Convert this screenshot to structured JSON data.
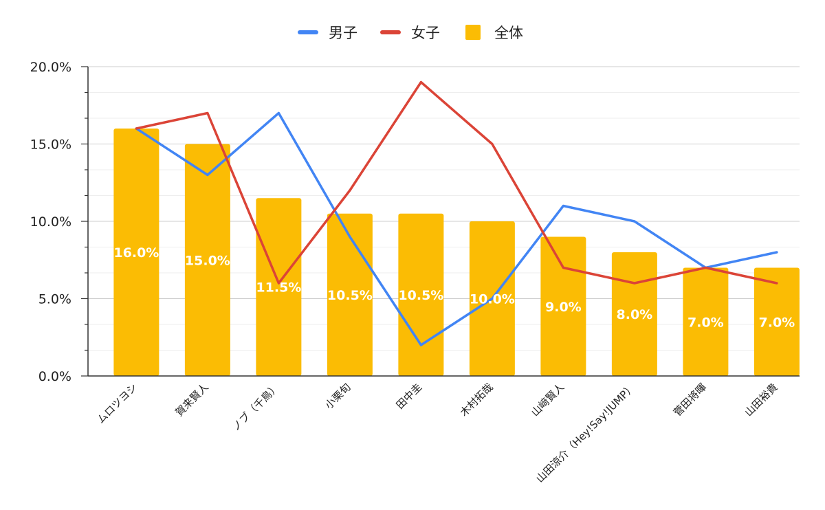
{
  "chart_data": {
    "type": "bar",
    "categories": [
      "ムロツヨシ",
      "賀来賢人",
      "ノブ（千鳥）",
      "小栗旬",
      "田中圭",
      "木村拓哉",
      "山﨑賢人",
      "山田涼介（Hey!Say!JUMP）",
      "菅田将暉",
      "山田裕貴"
    ],
    "series": [
      {
        "name": "全体",
        "kind": "bar",
        "color": "#fbbc04",
        "values": [
          16.0,
          15.0,
          11.5,
          10.5,
          10.5,
          10.0,
          9.0,
          8.0,
          7.0,
          7.0
        ]
      },
      {
        "name": "男子",
        "kind": "line",
        "color": "#4285f4",
        "values": [
          16.0,
          13.0,
          17.0,
          9.0,
          2.0,
          5.0,
          11.0,
          10.0,
          7.0,
          8.0
        ]
      },
      {
        "name": "女子",
        "kind": "line",
        "color": "#db4437",
        "values": [
          16.0,
          17.0,
          6.0,
          12.0,
          19.0,
          15.0,
          7.0,
          6.0,
          7.0,
          6.0
        ]
      }
    ],
    "data_labels": [
      "16.0%",
      "15.0%",
      "11.5%",
      "10.5%",
      "10.5%",
      "10.0%",
      "9.0%",
      "8.0%",
      "7.0%",
      "7.0%"
    ],
    "yticks": [
      "0.0%",
      "5.0%",
      "10.0%",
      "15.0%",
      "20.0%"
    ],
    "ylim": [
      0,
      20
    ],
    "legend": {
      "placement": "top-center",
      "items": [
        "男子",
        "女子",
        "全体"
      ]
    },
    "grid": true
  }
}
